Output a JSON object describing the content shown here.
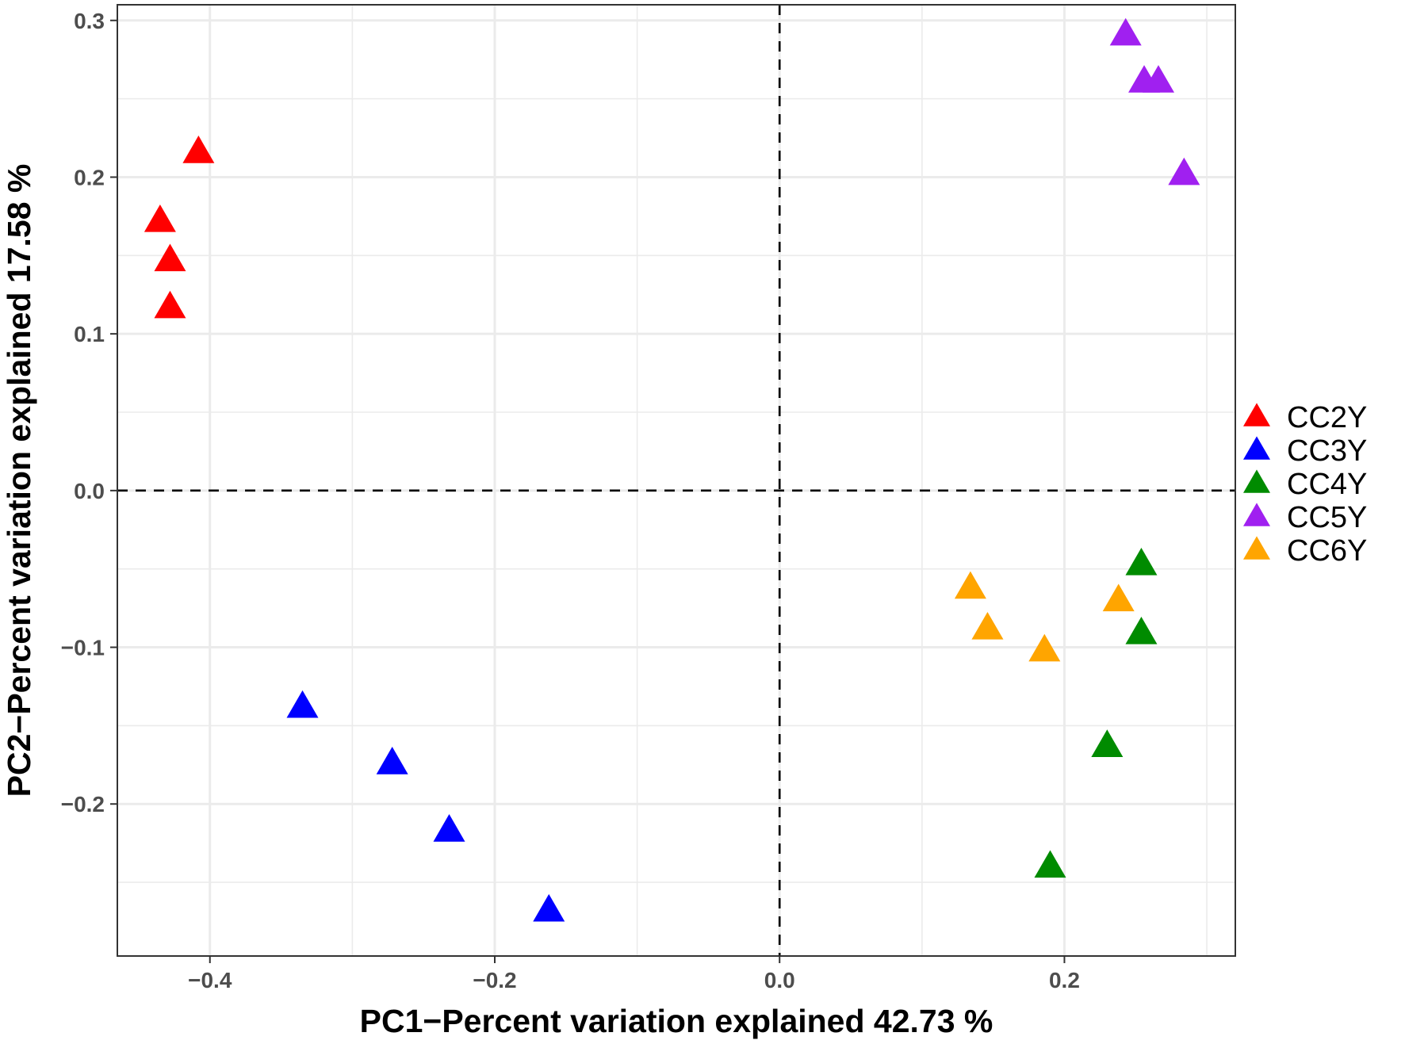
{
  "chart_data": {
    "type": "scatter",
    "xlabel": "PC1−Percent variation explained  42.73 %",
    "ylabel": "PC2−Percent variation explained  17.58 %",
    "xlim": [
      -0.465,
      0.32
    ],
    "ylim": [
      -0.297,
      0.31
    ],
    "x_ticks": [
      -0.4,
      -0.2,
      0.0,
      0.2
    ],
    "x_tick_labels": [
      "−0.4",
      "−0.2",
      "0.0",
      "0.2"
    ],
    "y_ticks": [
      -0.2,
      -0.1,
      0.0,
      0.1,
      0.2,
      0.3
    ],
    "y_tick_labels": [
      "−0.2",
      "−0.1",
      "0.0",
      "0.1",
      "0.2",
      "0.3"
    ],
    "grid": true,
    "reference_lines": {
      "x": 0.0,
      "y": 0.0,
      "style": "dashed"
    },
    "marker": "triangle",
    "legend_position": "right",
    "series": [
      {
        "name": "CC2Y",
        "color": "#ff0000",
        "points": [
          [
            -0.408,
            0.216
          ],
          [
            -0.435,
            0.172
          ],
          [
            -0.428,
            0.147
          ],
          [
            -0.428,
            0.117
          ]
        ]
      },
      {
        "name": "CC3Y",
        "color": "#0000ff",
        "points": [
          [
            -0.335,
            -0.138
          ],
          [
            -0.272,
            -0.174
          ],
          [
            -0.232,
            -0.217
          ],
          [
            -0.162,
            -0.268
          ]
        ]
      },
      {
        "name": "CC4Y",
        "color": "#008b00",
        "points": [
          [
            0.254,
            -0.047
          ],
          [
            0.254,
            -0.091
          ],
          [
            0.23,
            -0.163
          ],
          [
            0.19,
            -0.24
          ]
        ]
      },
      {
        "name": "CC5Y",
        "color": "#a020f0",
        "points": [
          [
            0.243,
            0.291
          ],
          [
            0.256,
            0.261
          ],
          [
            0.266,
            0.261
          ],
          [
            0.284,
            0.202
          ]
        ]
      },
      {
        "name": "CC6Y",
        "color": "#ffa500",
        "points": [
          [
            0.134,
            -0.062
          ],
          [
            0.146,
            -0.088
          ],
          [
            0.186,
            -0.102
          ],
          [
            0.238,
            -0.07
          ]
        ]
      }
    ]
  }
}
